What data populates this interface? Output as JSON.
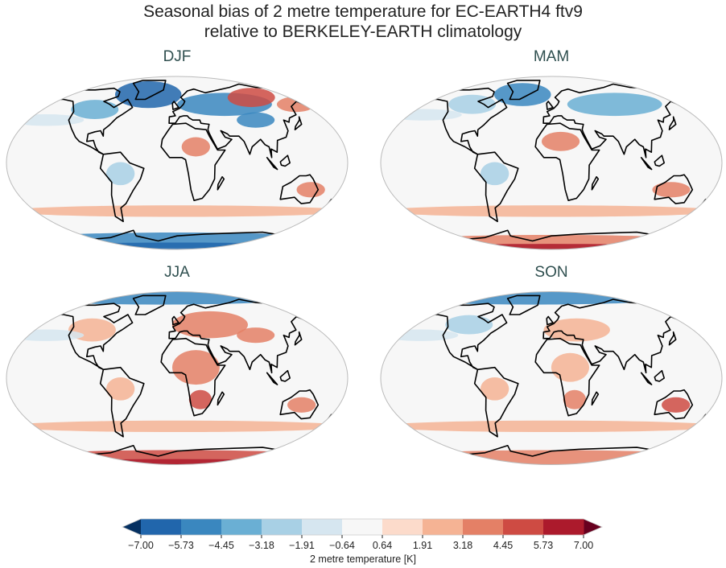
{
  "title": {
    "line1": "Seasonal bias of 2 metre temperature for EC-EARTH4 ftv9",
    "line2": "relative to BERKELEY-EARTH climatology"
  },
  "panels": [
    {
      "label": "DJF"
    },
    {
      "label": "MAM"
    },
    {
      "label": "JJA"
    },
    {
      "label": "SON"
    }
  ],
  "colorbar": {
    "label": "2 metre temperature [K]",
    "ticks": [
      "−7.00",
      "−5.73",
      "−4.45",
      "−3.18",
      "−1.91",
      "−0.64",
      "0.64",
      "1.91",
      "3.18",
      "4.45",
      "5.73",
      "7.00"
    ],
    "under_color": "#053061",
    "over_color": "#67001f",
    "colors": [
      "#2166ac",
      "#3a87bf",
      "#6aafd4",
      "#a8d0e5",
      "#d6e6f0",
      "#f7f7f7",
      "#fcdbcb",
      "#f5b394",
      "#e48066",
      "#ce4b43",
      "#ac1a2c"
    ]
  },
  "projection": "Robinson"
}
